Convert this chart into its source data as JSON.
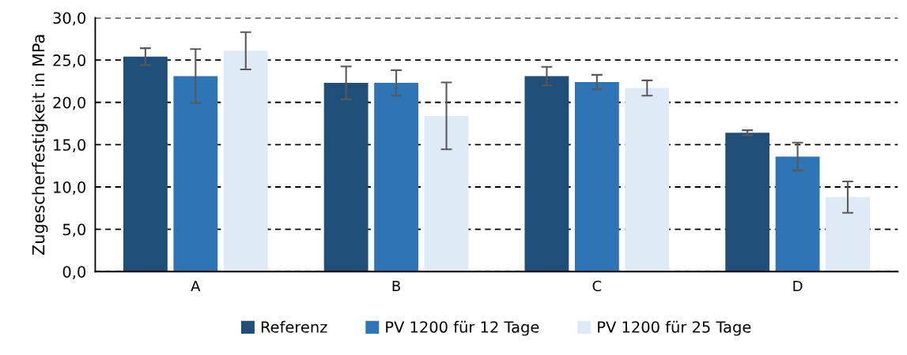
{
  "chart_data": {
    "type": "bar",
    "ylabel": "Zugescherfestigkeit in MPa",
    "categories": [
      "A",
      "B",
      "C",
      "D"
    ],
    "series": [
      {
        "name": "Referenz",
        "color": "#1f4e79",
        "values": [
          25.4,
          22.3,
          23.1,
          16.4
        ],
        "errors": [
          1.0,
          1.95,
          1.1,
          0.3
        ]
      },
      {
        "name": "PV 1200 für 12 Tage",
        "color": "#2e75b6",
        "values": [
          23.1,
          22.3,
          22.4,
          13.6
        ],
        "errors": [
          3.2,
          1.5,
          0.85,
          1.65
        ]
      },
      {
        "name": "PV 1200 für 25 Tage",
        "color": "#deebf7",
        "values": [
          26.1,
          18.4,
          21.7,
          8.8
        ],
        "errors": [
          2.2,
          3.95,
          0.9,
          1.85
        ]
      }
    ],
    "ylim": [
      0,
      30
    ],
    "yticks": [
      {
        "value": 0,
        "label": "0,0"
      },
      {
        "value": 5,
        "label": "5,0"
      },
      {
        "value": 10,
        "label": "10,0"
      },
      {
        "value": 15,
        "label": "15,0"
      },
      {
        "value": 20,
        "label": "20,0"
      },
      {
        "value": 25,
        "label": "25,0"
      },
      {
        "value": 30,
        "label": "30,0"
      }
    ],
    "grid": "y",
    "legend": "bottom"
  }
}
